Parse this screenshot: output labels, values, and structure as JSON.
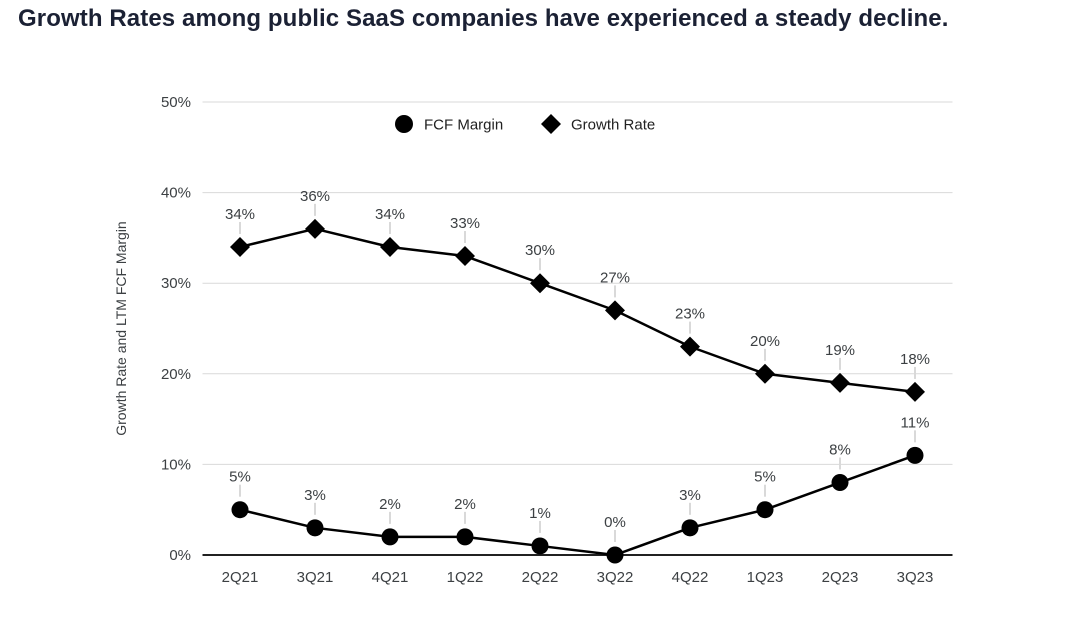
{
  "title": "Growth Rates among public SaaS companies have experienced a steady decline.",
  "colors": {
    "title": "#1b2134",
    "series": "#000000",
    "axis_text": "#3c4043",
    "legend_text": "#212121",
    "gridline": "#d9d9d9",
    "axis_line": "#212121",
    "leader_line": "#d9d9d9",
    "background": "#ffffff"
  },
  "legend": {
    "items": [
      {
        "label": "FCF Margin",
        "marker": "circle-icon"
      },
      {
        "label": "Growth Rate",
        "marker": "diamond-icon"
      }
    ]
  },
  "chart_data": {
    "type": "line",
    "title": "",
    "xlabel": "",
    "ylabel": "Growth Rate and LTM FCF Margin",
    "categories": [
      "2Q21",
      "3Q21",
      "4Q21",
      "1Q22",
      "2Q22",
      "3Q22",
      "4Q22",
      "1Q23",
      "2Q23",
      "3Q23"
    ],
    "series": [
      {
        "name": "FCF Margin",
        "marker": "circle",
        "values": [
          5,
          3,
          2,
          2,
          1,
          0,
          3,
          5,
          8,
          11
        ],
        "labels": [
          "5%",
          "3%",
          "2%",
          "2%",
          "1%",
          "0%",
          "3%",
          "5%",
          "8%",
          "11%"
        ]
      },
      {
        "name": "Growth Rate",
        "marker": "diamond",
        "values": [
          34,
          36,
          34,
          33,
          30,
          27,
          23,
          20,
          19,
          18
        ],
        "labels": [
          "34%",
          "36%",
          "34%",
          "33%",
          "30%",
          "27%",
          "23%",
          "20%",
          "19%",
          "18%"
        ]
      }
    ],
    "ylim": [
      0,
      50
    ],
    "yticks": [
      0,
      10,
      20,
      30,
      40,
      50
    ],
    "ytick_labels": [
      "0%",
      "10%",
      "20%",
      "30%",
      "40%",
      "50%"
    ],
    "grid": true,
    "legend_position": "top-center"
  }
}
